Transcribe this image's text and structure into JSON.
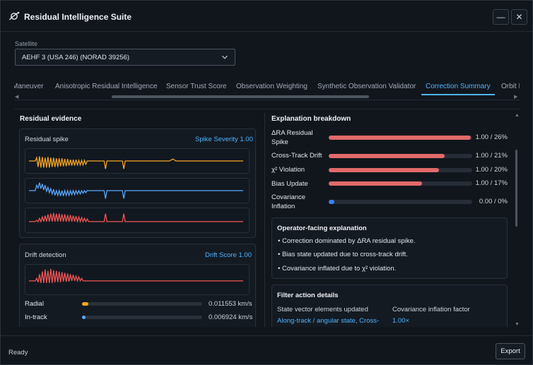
{
  "app": {
    "title": "Residual Intelligence Suite"
  },
  "window_controls": {
    "minimize": "—",
    "close": "✕"
  },
  "satellite": {
    "label": "Satellite",
    "selected": "AEHF 3 (USA 246) (NORAD 39256)"
  },
  "tabs": [
    {
      "label": "Maneuver",
      "active": false
    },
    {
      "label": "Anisotropic Residual Intelligence",
      "active": false
    },
    {
      "label": "Sensor Trust Score",
      "active": false
    },
    {
      "label": "Observation Weighting",
      "active": false
    },
    {
      "label": "Synthetic Observation Validator",
      "active": false
    },
    {
      "label": "Correction Summary",
      "active": true
    },
    {
      "label": "Orbit I",
      "active": false
    }
  ],
  "left": {
    "title": "Residual evidence",
    "spike_card": {
      "title": "Residual spike",
      "link": "Spike Severity 1.00",
      "plots": [
        {
          "color": "#f5a524"
        },
        {
          "color": "#5aa8ff"
        },
        {
          "color": "#f25555"
        }
      ]
    },
    "drift_card": {
      "title": "Drift detection",
      "link": "Drift Score 1.00",
      "plot_color": "#f25555"
    },
    "metrics": [
      {
        "label": "Radial",
        "value": "0.011553 km/s",
        "fraction": 0.05,
        "color": "#f5a524"
      },
      {
        "label": "In-track",
        "value": "0.006924 km/s",
        "fraction": 0.03,
        "color": "#5aa8ff"
      }
    ]
  },
  "right": {
    "title": "Explanation breakdown",
    "rows": [
      {
        "label": "ΔRA Residual Spike",
        "value": "1.00 / 26%",
        "fraction": 0.99
      },
      {
        "label": "Cross-Track Drift",
        "value": "1.00 / 21%",
        "fraction": 0.81
      },
      {
        "label": "χ² Violation",
        "value": "1.00 / 20%",
        "fraction": 0.77
      },
      {
        "label": "Bias Update",
        "value": "1.00 / 17%",
        "fraction": 0.65
      },
      {
        "label": "Covariance Inflation",
        "value": "0.00 / 0%",
        "fraction": 0.04
      }
    ],
    "operator": {
      "title": "Operator-facing explanation",
      "bullets": [
        "• Correction dominated by ΔRA residual spike.",
        "• Bias state updated due to cross-track drift.",
        "• Covariance inflated due to χ² violation."
      ]
    },
    "filter": {
      "title": "Filter action details",
      "col1_header": "State vector elements updated",
      "col1_value": "Along-track / angular state, Cross-",
      "col2_header": "Covariance inflation factor",
      "col2_value": "1.00×"
    }
  },
  "footer": {
    "status": "Ready",
    "export": "Export"
  },
  "colors": {
    "accent": "#4fb4ff",
    "bar_red": "#e26a6a"
  }
}
